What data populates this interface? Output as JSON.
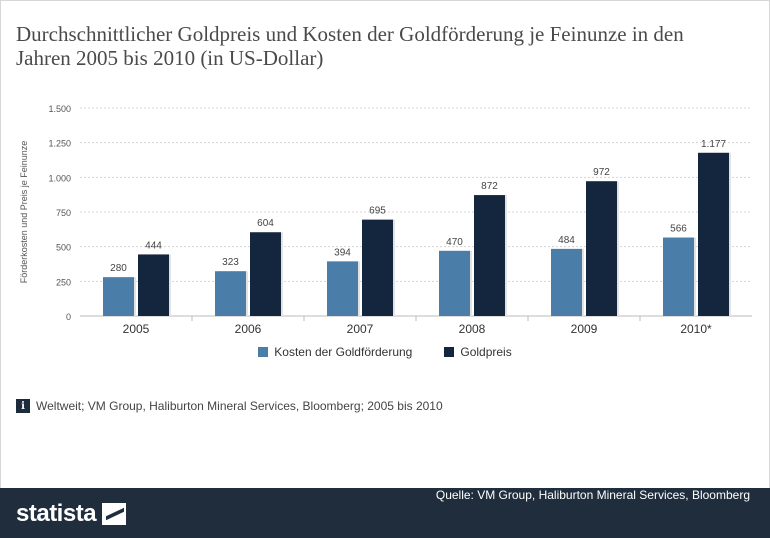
{
  "title": "Durchschnittlicher Goldpreis und Kosten der Goldförderung je Feinunze in den Jahren 2005 bis 2010 (in US-Dollar)",
  "chart_data": {
    "type": "bar",
    "categories": [
      "2005",
      "2006",
      "2007",
      "2008",
      "2009",
      "2010*"
    ],
    "series": [
      {
        "name": "Kosten der Goldförderung",
        "values": [
          280,
          323,
          394,
          470,
          484,
          566
        ],
        "labels": [
          "280",
          "323",
          "394",
          "470",
          "484",
          "566"
        ],
        "color": "#4a7ea8"
      },
      {
        "name": "Goldpreis",
        "values": [
          444,
          604,
          695,
          872,
          972,
          1177
        ],
        "labels": [
          "444",
          "604",
          "695",
          "872",
          "972",
          "1.177"
        ],
        "color": "#14263d"
      }
    ],
    "ylabel": "Förderkosten und Preis je Feinunze",
    "ylim": [
      0,
      1500
    ],
    "yticks": [
      0,
      250,
      500,
      750,
      1000,
      1250,
      1500
    ],
    "ytick_labels": [
      "0",
      "250",
      "500",
      "750",
      "1.000",
      "1.250",
      "1.500"
    ],
    "grid": true,
    "legend": "bottom"
  },
  "info_note": "Weltweit; VM Group, Haliburton Mineral Services, Bloomberg; 2005 bis 2010",
  "footer": {
    "brand": "statista",
    "source": "Quelle: VM Group, Haliburton Mineral Services, Bloomberg"
  }
}
